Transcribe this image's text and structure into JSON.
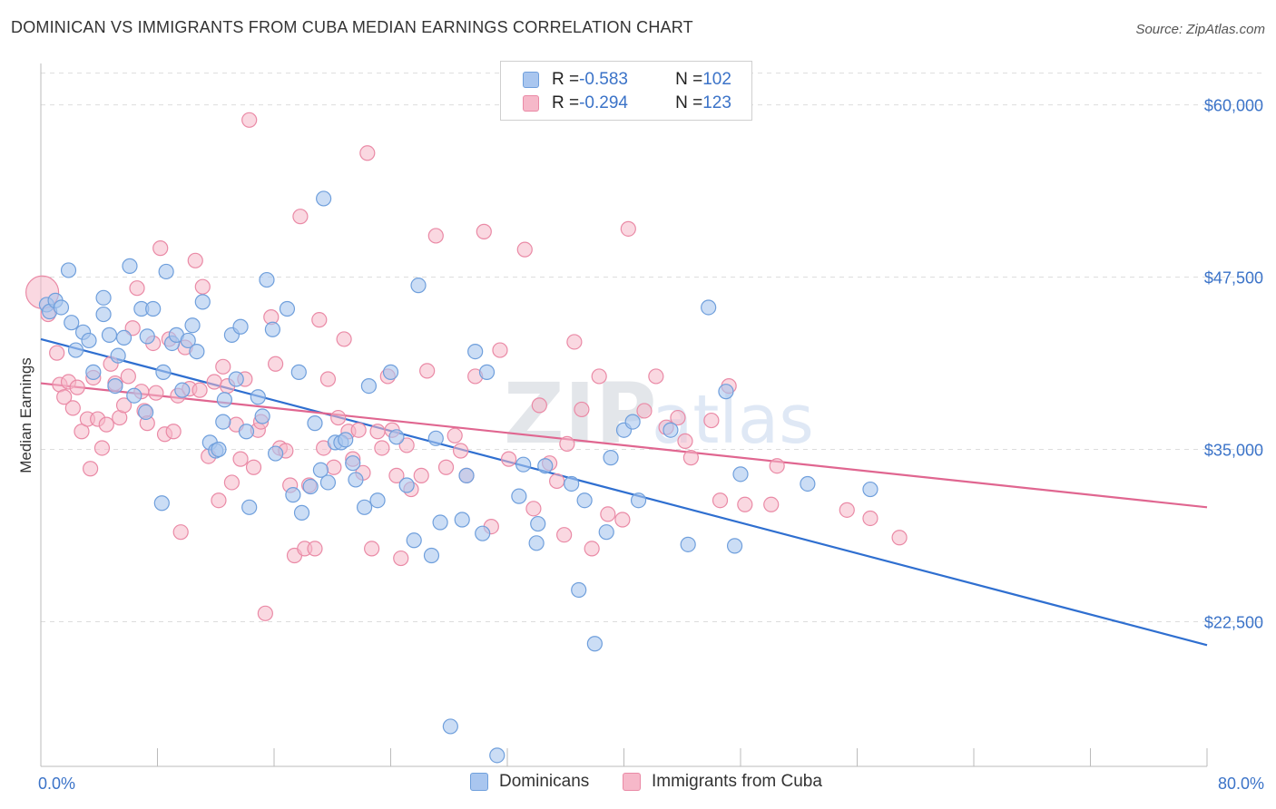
{
  "title": "DOMINICAN VS IMMIGRANTS FROM CUBA MEDIAN EARNINGS CORRELATION CHART",
  "source": "Source: ZipAtlas.com",
  "legend": {
    "row1": {
      "r_label": "R = ",
      "r_value": "-0.583",
      "n_label": "N = ",
      "n_value": "102"
    },
    "row2": {
      "r_label": "R = ",
      "r_value": "-0.294",
      "n_label": "N = ",
      "n_value": "123"
    }
  },
  "bottom_legend": {
    "series1": "Dominicans",
    "series2": "Immigrants from Cuba"
  },
  "colors": {
    "blue_fill": "#a9c6ef",
    "blue_stroke": "#6f9fdc",
    "blue_line": "#2f6fd0",
    "pink_fill": "#f6b8c9",
    "pink_stroke": "#ea8aa6",
    "pink_line": "#e06690",
    "tick_text": "#3b73c8",
    "grid": "#dddddd"
  },
  "chart_data": {
    "type": "scatter",
    "title": "DOMINICAN VS IMMIGRANTS FROM CUBA MEDIAN EARNINGS CORRELATION CHART",
    "xlabel": "",
    "ylabel": "Median Earnings",
    "xlim": [
      0,
      80
    ],
    "ylim": [
      12000,
      63000
    ],
    "x_tick_labels": [
      "0.0%",
      "80.0%"
    ],
    "y_ticks": [
      22500,
      35000,
      47500,
      60000
    ],
    "y_tick_labels": [
      "$22,500",
      "$35,000",
      "$47,500",
      "$60,000"
    ],
    "grid": true,
    "legend_position": "top-center",
    "series": [
      {
        "name": "Dominicans",
        "color": "#6f9fdc",
        "r": -0.583,
        "n": 102,
        "trend": {
          "x": [
            0,
            80
          ],
          "y": [
            43000,
            20800
          ]
        },
        "points": [
          [
            0.4,
            45500
          ],
          [
            0.6,
            45000
          ],
          [
            1.0,
            45800
          ],
          [
            1.4,
            45300
          ],
          [
            1.9,
            48000
          ],
          [
            2.1,
            44200
          ],
          [
            2.4,
            42200
          ],
          [
            2.9,
            43500
          ],
          [
            3.3,
            42900
          ],
          [
            3.6,
            40600
          ],
          [
            4.3,
            46000
          ],
          [
            4.3,
            44800
          ],
          [
            4.7,
            43300
          ],
          [
            5.1,
            39600
          ],
          [
            5.3,
            41800
          ],
          [
            5.7,
            43100
          ],
          [
            6.1,
            48300
          ],
          [
            6.4,
            38900
          ],
          [
            6.9,
            45200
          ],
          [
            7.2,
            37700
          ],
          [
            7.3,
            43200
          ],
          [
            7.7,
            45200
          ],
          [
            8.3,
            31100
          ],
          [
            8.4,
            40600
          ],
          [
            8.6,
            47900
          ],
          [
            9.0,
            42700
          ],
          [
            9.3,
            43300
          ],
          [
            9.7,
            39300
          ],
          [
            10.1,
            42900
          ],
          [
            10.4,
            44000
          ],
          [
            10.7,
            42100
          ],
          [
            11.1,
            45700
          ],
          [
            11.6,
            35500
          ],
          [
            12.0,
            34900
          ],
          [
            12.2,
            35000
          ],
          [
            12.5,
            37000
          ],
          [
            12.6,
            38600
          ],
          [
            13.1,
            43300
          ],
          [
            13.4,
            40100
          ],
          [
            13.7,
            43900
          ],
          [
            14.1,
            36300
          ],
          [
            14.3,
            30800
          ],
          [
            14.9,
            38800
          ],
          [
            15.2,
            37400
          ],
          [
            15.5,
            47300
          ],
          [
            15.9,
            43700
          ],
          [
            16.1,
            34700
          ],
          [
            16.9,
            45200
          ],
          [
            17.3,
            31700
          ],
          [
            17.7,
            40600
          ],
          [
            17.9,
            30400
          ],
          [
            18.5,
            32300
          ],
          [
            18.8,
            36900
          ],
          [
            19.2,
            33500
          ],
          [
            19.4,
            53200
          ],
          [
            19.7,
            32600
          ],
          [
            20.2,
            35500
          ],
          [
            20.6,
            35500
          ],
          [
            20.9,
            35700
          ],
          [
            21.4,
            34000
          ],
          [
            21.6,
            32800
          ],
          [
            22.2,
            30800
          ],
          [
            22.5,
            39600
          ],
          [
            23.1,
            31300
          ],
          [
            24.0,
            40600
          ],
          [
            24.4,
            35900
          ],
          [
            25.1,
            32400
          ],
          [
            25.6,
            28400
          ],
          [
            25.9,
            46900
          ],
          [
            26.8,
            27300
          ],
          [
            27.4,
            29700
          ],
          [
            28.1,
            14900
          ],
          [
            28.9,
            29900
          ],
          [
            29.2,
            33100
          ],
          [
            29.8,
            42100
          ],
          [
            30.3,
            28900
          ],
          [
            30.6,
            40600
          ],
          [
            31.3,
            12800
          ],
          [
            32.8,
            31600
          ],
          [
            33.1,
            33900
          ],
          [
            34.0,
            28200
          ],
          [
            34.1,
            29600
          ],
          [
            34.6,
            33800
          ],
          [
            36.4,
            32500
          ],
          [
            36.9,
            24800
          ],
          [
            37.3,
            31300
          ],
          [
            38.0,
            20900
          ],
          [
            38.8,
            29000
          ],
          [
            39.1,
            34400
          ],
          [
            40.0,
            36400
          ],
          [
            40.6,
            37000
          ],
          [
            41.0,
            31300
          ],
          [
            44.4,
            28100
          ],
          [
            45.8,
            45300
          ],
          [
            47.0,
            39200
          ],
          [
            47.6,
            28000
          ],
          [
            48.0,
            33200
          ],
          [
            52.6,
            32500
          ],
          [
            56.9,
            32100
          ],
          [
            43.2,
            36400
          ],
          [
            27.1,
            35800
          ]
        ]
      },
      {
        "name": "Immigrants from Cuba",
        "color": "#ea8aa6",
        "r": -0.294,
        "n": 123,
        "trend": {
          "x": [
            0,
            80
          ],
          "y": [
            39800,
            30800
          ]
        },
        "points": [
          [
            0.1,
            46400
          ],
          [
            0.5,
            44800
          ],
          [
            1.1,
            42000
          ],
          [
            1.3,
            39700
          ],
          [
            1.6,
            38800
          ],
          [
            1.9,
            39900
          ],
          [
            2.2,
            38000
          ],
          [
            2.5,
            39500
          ],
          [
            2.8,
            36300
          ],
          [
            3.2,
            37200
          ],
          [
            3.4,
            33600
          ],
          [
            3.6,
            40200
          ],
          [
            3.9,
            37200
          ],
          [
            4.2,
            35100
          ],
          [
            4.5,
            36800
          ],
          [
            4.8,
            41200
          ],
          [
            5.1,
            39800
          ],
          [
            5.4,
            37300
          ],
          [
            5.7,
            38200
          ],
          [
            6.0,
            40300
          ],
          [
            6.3,
            43800
          ],
          [
            6.6,
            46700
          ],
          [
            6.9,
            39200
          ],
          [
            7.1,
            37800
          ],
          [
            7.3,
            36900
          ],
          [
            7.7,
            42700
          ],
          [
            7.9,
            39100
          ],
          [
            8.2,
            49600
          ],
          [
            8.5,
            36100
          ],
          [
            8.8,
            43000
          ],
          [
            9.1,
            36300
          ],
          [
            9.4,
            38900
          ],
          [
            9.6,
            29000
          ],
          [
            9.9,
            42400
          ],
          [
            10.2,
            39400
          ],
          [
            10.6,
            48700
          ],
          [
            10.9,
            39300
          ],
          [
            11.1,
            46800
          ],
          [
            11.5,
            34500
          ],
          [
            11.9,
            39900
          ],
          [
            12.2,
            31300
          ],
          [
            12.5,
            41000
          ],
          [
            12.8,
            39600
          ],
          [
            13.1,
            32600
          ],
          [
            13.4,
            36800
          ],
          [
            13.7,
            34300
          ],
          [
            14.0,
            40100
          ],
          [
            14.3,
            58900
          ],
          [
            14.6,
            33700
          ],
          [
            14.9,
            36400
          ],
          [
            15.1,
            37000
          ],
          [
            15.4,
            23100
          ],
          [
            15.8,
            44600
          ],
          [
            16.1,
            41200
          ],
          [
            16.4,
            35100
          ],
          [
            16.8,
            34900
          ],
          [
            17.1,
            32400
          ],
          [
            17.4,
            27300
          ],
          [
            17.8,
            51900
          ],
          [
            18.1,
            27800
          ],
          [
            18.4,
            32400
          ],
          [
            18.8,
            27800
          ],
          [
            19.1,
            44400
          ],
          [
            19.4,
            35100
          ],
          [
            19.7,
            40100
          ],
          [
            20.1,
            33700
          ],
          [
            20.4,
            37300
          ],
          [
            20.8,
            43000
          ],
          [
            21.1,
            36300
          ],
          [
            21.4,
            34300
          ],
          [
            21.8,
            36400
          ],
          [
            22.1,
            33300
          ],
          [
            22.4,
            56500
          ],
          [
            22.7,
            27800
          ],
          [
            23.1,
            36300
          ],
          [
            23.4,
            35100
          ],
          [
            23.8,
            40300
          ],
          [
            24.1,
            36400
          ],
          [
            24.4,
            33100
          ],
          [
            24.7,
            27100
          ],
          [
            25.1,
            35300
          ],
          [
            25.4,
            32100
          ],
          [
            26.1,
            33100
          ],
          [
            26.5,
            40700
          ],
          [
            27.1,
            50500
          ],
          [
            27.8,
            33700
          ],
          [
            28.4,
            36000
          ],
          [
            28.8,
            34900
          ],
          [
            29.2,
            33100
          ],
          [
            29.8,
            40300
          ],
          [
            30.4,
            50800
          ],
          [
            30.9,
            29400
          ],
          [
            31.5,
            42200
          ],
          [
            32.1,
            34300
          ],
          [
            33.2,
            49500
          ],
          [
            33.8,
            30700
          ],
          [
            34.2,
            38200
          ],
          [
            34.9,
            34000
          ],
          [
            35.4,
            32700
          ],
          [
            35.9,
            28800
          ],
          [
            36.6,
            42800
          ],
          [
            37.1,
            37900
          ],
          [
            37.8,
            27800
          ],
          [
            38.3,
            40300
          ],
          [
            38.9,
            30300
          ],
          [
            40.3,
            51000
          ],
          [
            41.4,
            37800
          ],
          [
            42.2,
            40300
          ],
          [
            42.9,
            36600
          ],
          [
            43.7,
            37300
          ],
          [
            44.2,
            35600
          ],
          [
            46.0,
            37100
          ],
          [
            47.2,
            39600
          ],
          [
            48.3,
            31000
          ],
          [
            50.5,
            33800
          ],
          [
            55.3,
            30600
          ],
          [
            56.9,
            30000
          ],
          [
            58.9,
            28600
          ],
          [
            50.1,
            31000
          ],
          [
            39.9,
            29900
          ],
          [
            36.1,
            35400
          ],
          [
            46.6,
            31300
          ],
          [
            44.6,
            34400
          ]
        ]
      }
    ]
  }
}
